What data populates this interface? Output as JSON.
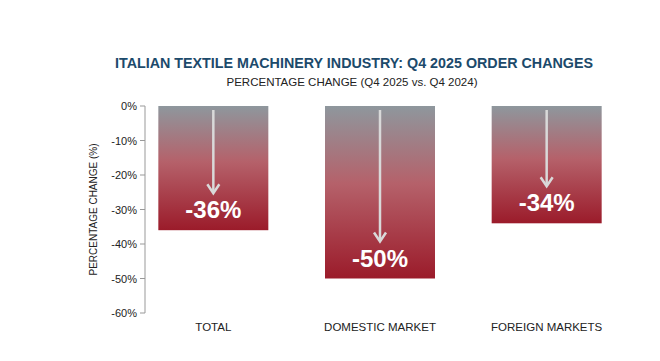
{
  "chart_data": {
    "type": "bar",
    "title": "ITALIAN TEXTILE MACHINERY INDUSTRY: Q4 2025 ORDER CHANGES",
    "subtitle": "PERCENTAGE CHANGE (Q4 2025 vs. Q4 2024)",
    "y_label": "PERCENTAGE CHANGE (%)",
    "categories": [
      "TOTAL",
      "DOMESTIC MARKET",
      "FOREIGN MARKETS"
    ],
    "values": [
      -36,
      -50,
      -34
    ],
    "value_labels": [
      "-36%",
      "-50%",
      "-34%"
    ],
    "color": "#9b1b2a",
    "ylim": [
      -60,
      0
    ],
    "yticks": [
      {
        "value": 0,
        "label": "0%"
      },
      {
        "value": -10,
        "label": "-10%"
      },
      {
        "value": -20,
        "label": "-20%"
      },
      {
        "value": -30,
        "label": "-30%"
      },
      {
        "value": -40,
        "label": "-40%"
      },
      {
        "value": -50,
        "label": "-50%"
      },
      {
        "value": -60,
        "label": "-60%"
      }
    ],
    "grid": false,
    "data_labels": true
  }
}
